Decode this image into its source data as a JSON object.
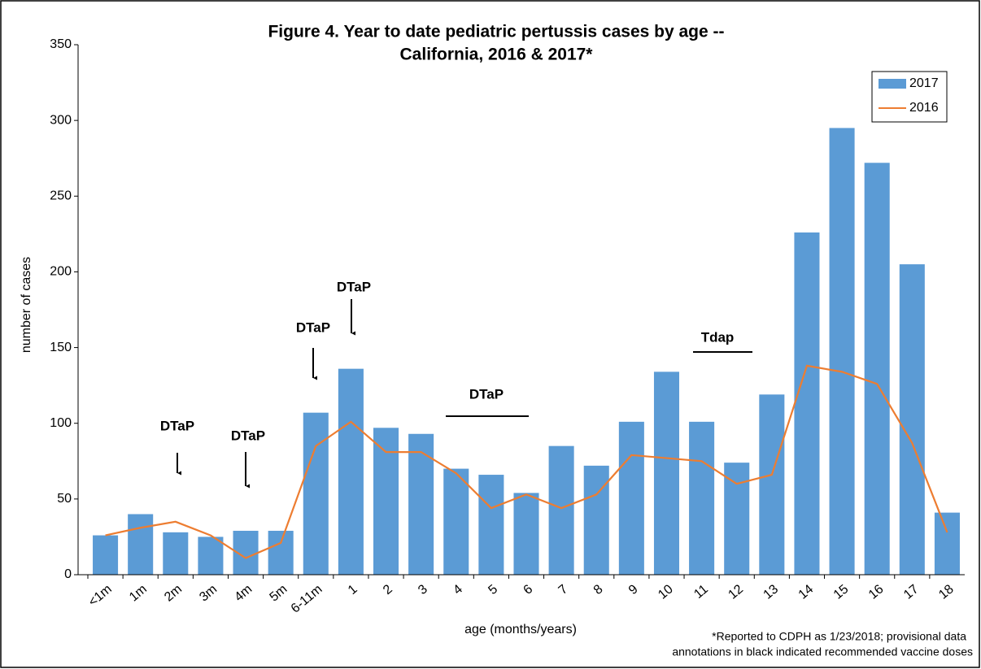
{
  "chart_data": {
    "type": "bar",
    "title": "Figure 4. Year to date pediatric pertussis cases by age --",
    "subtitle": "California,  2016 & 2017*",
    "x_label": "age (months/years)",
    "y_label": "number of cases",
    "categories": [
      "<1m",
      "1m",
      "2m",
      "3m",
      "4m",
      "5m",
      "6-11m",
      "1",
      "2",
      "3",
      "4",
      "5",
      "6",
      "7",
      "8",
      "9",
      "10",
      "11",
      "12",
      "13",
      "14",
      "15",
      "16",
      "17",
      "18"
    ],
    "series": [
      {
        "name": "2017",
        "type": "bar",
        "color": "#5b9bd5",
        "values": [
          26,
          40,
          28,
          25,
          29,
          29,
          107,
          136,
          97,
          93,
          70,
          66,
          54,
          85,
          72,
          101,
          134,
          101,
          74,
          119,
          226,
          295,
          272,
          205,
          41
        ]
      },
      {
        "name": "2016",
        "type": "line",
        "color": "#ed7d31",
        "values": [
          26,
          31,
          35,
          26,
          11,
          21,
          85,
          101,
          81,
          81,
          67,
          44,
          53,
          44,
          53,
          79,
          77,
          75,
          60,
          66,
          138,
          134,
          126,
          87,
          28
        ]
      }
    ],
    "ylim": [
      0,
      350
    ],
    "yticks": [
      0,
      50,
      100,
      150,
      200,
      250,
      300,
      350
    ],
    "legend": "top-right",
    "annotations": [
      "DTaP",
      "DTaP",
      "DTaP",
      "DTaP",
      "DTaP",
      "Tdap"
    ],
    "footnote": [
      "*Reported to CDPH as 1/23/2018; provisional data",
      "annotations in black indicated recommended vaccine doses"
    ]
  }
}
